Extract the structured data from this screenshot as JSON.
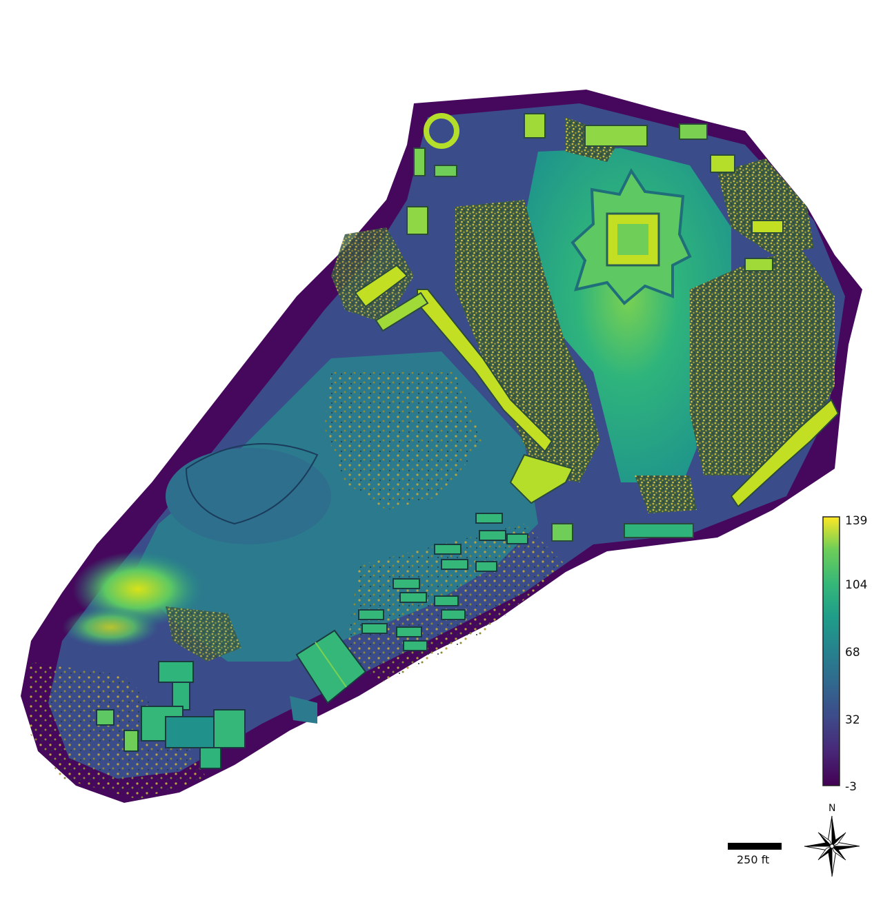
{
  "map": {
    "colormap": "viridis",
    "colors": {
      "low": "#440154",
      "mid_low": "#31688e",
      "mid": "#21918c",
      "mid_high": "#35b779",
      "high": "#fde725",
      "canopy": "#b5a63a"
    }
  },
  "legend": {
    "max_label": "139",
    "tick_104": "104",
    "tick_68": "68",
    "tick_32": "32",
    "min_label": "-3",
    "values": {
      "max": 139,
      "min": -3,
      "ticks": [
        104,
        68,
        32
      ]
    }
  },
  "scale_bar": {
    "label": "250 ft"
  },
  "north_arrow": {
    "label": "N",
    "icon": "compass-rose-icon"
  }
}
